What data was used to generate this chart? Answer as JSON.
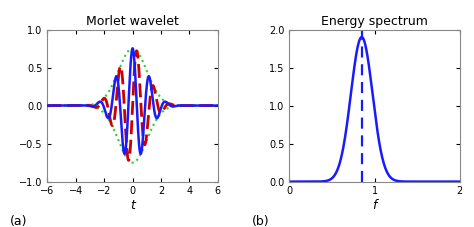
{
  "title_left": "Morlet wavelet",
  "title_right": "Energy spectrum",
  "xlabel_left": "t",
  "xlabel_right": "f",
  "label_left": "(a)",
  "label_right": "(b)",
  "xlim_left": [
    -6,
    6
  ],
  "ylim_left": [
    -1,
    1
  ],
  "xticks_left": [
    -6,
    -4,
    -2,
    0,
    2,
    4,
    6
  ],
  "yticks_left": [
    -1,
    -0.5,
    0,
    0.5,
    1
  ],
  "xlim_right": [
    0,
    2
  ],
  "ylim_right": [
    0,
    2
  ],
  "xticks_right": [
    0,
    1,
    2
  ],
  "yticks_right": [
    0,
    0.5,
    1,
    1.5,
    2
  ],
  "morlet_f0": 0.849,
  "morlet_sigma": 1.0,
  "color_blue": "#1a1aff",
  "color_red": "#cc0000",
  "color_green": "#33cc33",
  "background_color": "#ffffff",
  "spine_color": "#888888",
  "lw_solid": 1.8,
  "lw_dashed": 2.0,
  "lw_dotted": 1.5
}
